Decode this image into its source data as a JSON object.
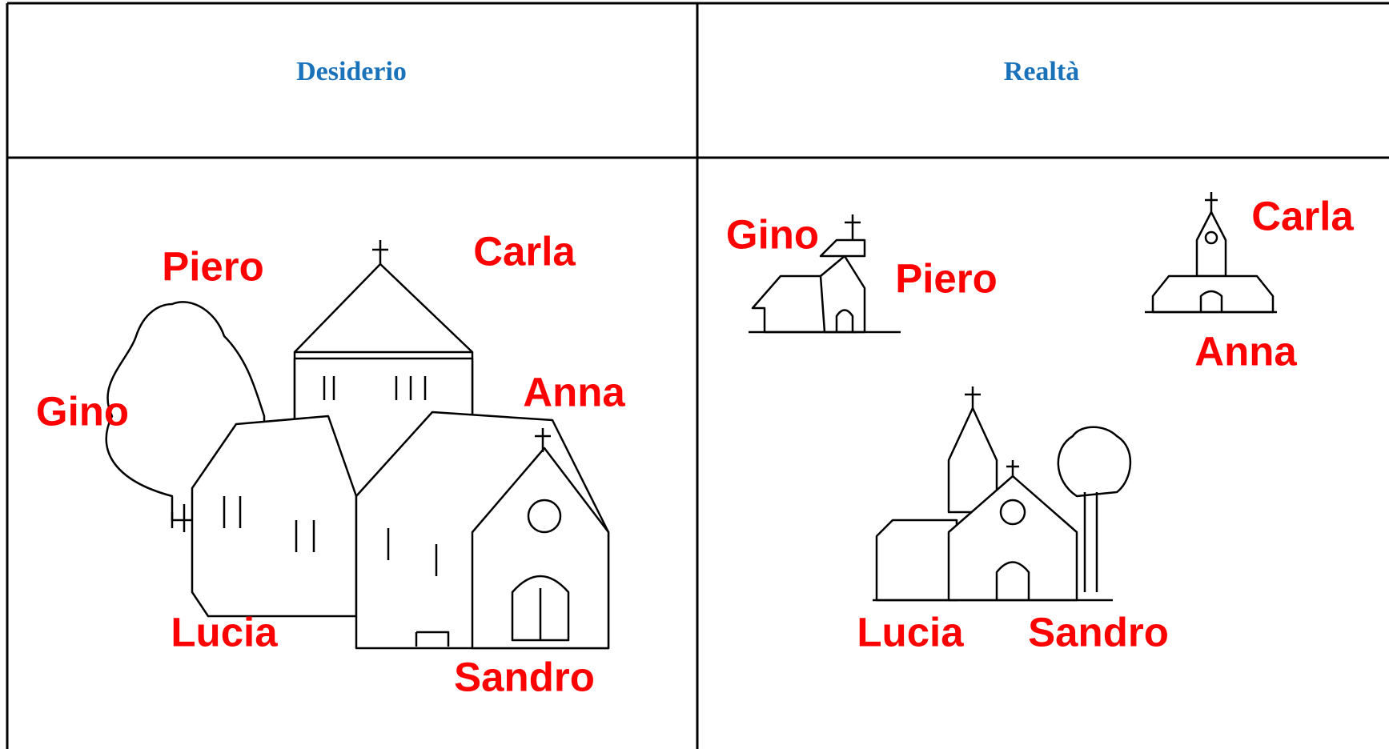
{
  "table": {
    "header": [
      "Desiderio",
      "Realtà"
    ],
    "rows": [
      [
        {
          "labels": [
            "Piero",
            "Carla",
            "Gino",
            "Anna",
            "Lucia",
            "Sandro"
          ]
        },
        {
          "labels": [
            "Gino",
            "Piero",
            "Carla",
            "Anna",
            "Lucia",
            "Sandro"
          ]
        }
      ]
    ]
  }
}
